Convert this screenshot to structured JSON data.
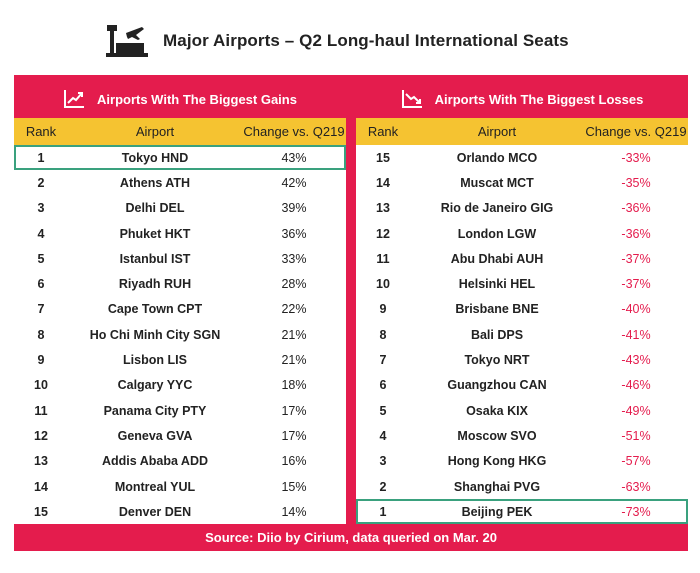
{
  "title": "Major Airports – Q2 Long-haul International Seats",
  "colors": {
    "accent": "#e41c4d",
    "header_row": "#f5c331",
    "highlight": "#3aa17e"
  },
  "left": {
    "heading": "Airports With The Biggest Gains",
    "icon": "rising-chart-icon",
    "columns": [
      "Rank",
      "Airport",
      "Change vs. Q219"
    ],
    "rows": [
      {
        "rank": "1",
        "airport": "Tokyo HND",
        "change": "43%"
      },
      {
        "rank": "2",
        "airport": "Athens ATH",
        "change": "42%"
      },
      {
        "rank": "3",
        "airport": "Delhi DEL",
        "change": "39%"
      },
      {
        "rank": "4",
        "airport": "Phuket HKT",
        "change": "36%"
      },
      {
        "rank": "5",
        "airport": "Istanbul IST",
        "change": "33%"
      },
      {
        "rank": "6",
        "airport": "Riyadh RUH",
        "change": "28%"
      },
      {
        "rank": "7",
        "airport": "Cape Town CPT",
        "change": "22%"
      },
      {
        "rank": "8",
        "airport": "Ho Chi Minh City SGN",
        "change": "21%"
      },
      {
        "rank": "9",
        "airport": "Lisbon LIS",
        "change": "21%"
      },
      {
        "rank": "10",
        "airport": "Calgary YYC",
        "change": "18%"
      },
      {
        "rank": "11",
        "airport": "Panama City PTY",
        "change": "17%"
      },
      {
        "rank": "12",
        "airport": "Geneva GVA",
        "change": "17%"
      },
      {
        "rank": "13",
        "airport": "Addis Ababa ADD",
        "change": "16%"
      },
      {
        "rank": "14",
        "airport": "Montreal YUL",
        "change": "15%"
      },
      {
        "rank": "15",
        "airport": "Denver DEN",
        "change": "14%"
      }
    ]
  },
  "right": {
    "heading": "Airports With The Biggest Losses",
    "icon": "falling-chart-icon",
    "columns": [
      "Rank",
      "Airport",
      "Change vs. Q219"
    ],
    "rows": [
      {
        "rank": "15",
        "airport": "Orlando MCO",
        "change": "-33%"
      },
      {
        "rank": "14",
        "airport": "Muscat MCT",
        "change": "-35%"
      },
      {
        "rank": "13",
        "airport": "Rio de Janeiro GIG",
        "change": "-36%"
      },
      {
        "rank": "12",
        "airport": "London LGW",
        "change": "-36%"
      },
      {
        "rank": "11",
        "airport": "Abu Dhabi AUH",
        "change": "-37%"
      },
      {
        "rank": "10",
        "airport": "Helsinki HEL",
        "change": "-37%"
      },
      {
        "rank": "9",
        "airport": "Brisbane BNE",
        "change": "-40%"
      },
      {
        "rank": "8",
        "airport": "Bali DPS",
        "change": "-41%"
      },
      {
        "rank": "7",
        "airport": "Tokyo NRT",
        "change": "-43%"
      },
      {
        "rank": "6",
        "airport": "Guangzhou CAN",
        "change": "-46%"
      },
      {
        "rank": "5",
        "airport": "Osaka KIX",
        "change": "-49%"
      },
      {
        "rank": "4",
        "airport": "Moscow SVO",
        "change": "-51%"
      },
      {
        "rank": "3",
        "airport": "Hong Kong HKG",
        "change": "-57%"
      },
      {
        "rank": "2",
        "airport": "Shanghai PVG",
        "change": "-63%"
      },
      {
        "rank": "1",
        "airport": "Beijing PEK",
        "change": "-73%"
      }
    ]
  },
  "source": "Source: Diio by Cirium, data queried on Mar. 20"
}
